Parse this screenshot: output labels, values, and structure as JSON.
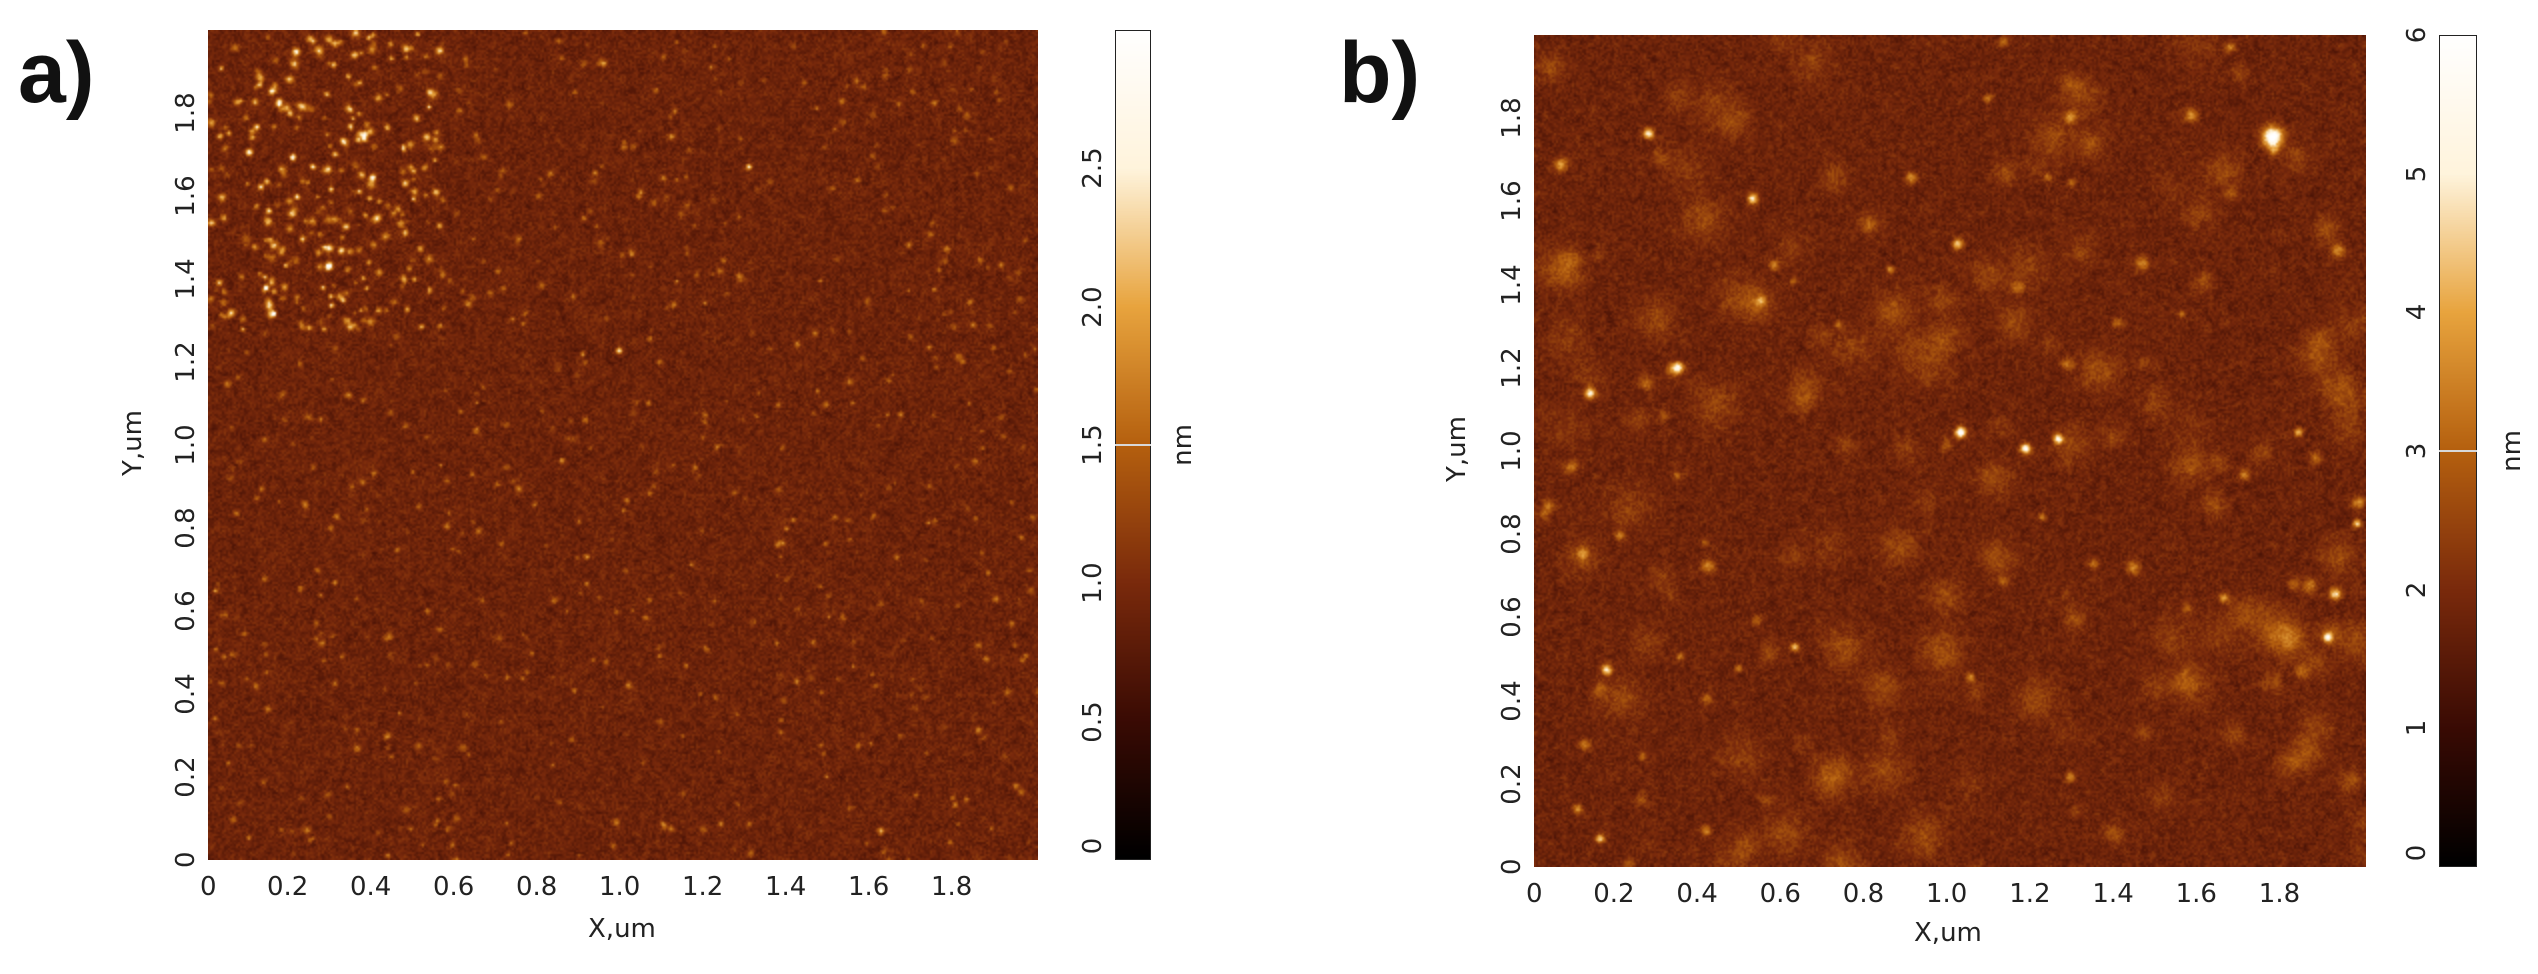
{
  "panels": [
    {
      "id": "a",
      "label": "a)",
      "x_axis": {
        "title": "X,um",
        "ticks": [
          "0",
          "0.2",
          "0.4",
          "0.6",
          "0.8",
          "1.0",
          "1.2",
          "1.4",
          "1.6",
          "1.8"
        ],
        "range": [
          0,
          2
        ]
      },
      "y_axis": {
        "title": "Y,um",
        "ticks": [
          "0",
          "0.2",
          "0.4",
          "0.6",
          "0.8",
          "1.0",
          "1.2",
          "1.4",
          "1.6",
          "1.8"
        ],
        "range": [
          0,
          2
        ]
      },
      "colorbar": {
        "unit": "nm",
        "ticks": [
          "0",
          "0.5",
          "1.0",
          "1.5",
          "2.0",
          "2.5"
        ],
        "range": [
          0,
          3
        ],
        "midpoint": 1.5,
        "colors": [
          "#000000",
          "#3a0b04",
          "#7a2a0c",
          "#b5600f",
          "#e8a43e",
          "#fff4dc",
          "#ffffff"
        ]
      }
    },
    {
      "id": "b",
      "label": "b)",
      "x_axis": {
        "title": "X,um",
        "ticks": [
          "0",
          "0.2",
          "0.4",
          "0.6",
          "0.8",
          "1.0",
          "1.2",
          "1.4",
          "1.6",
          "1.8"
        ],
        "range": [
          0,
          2
        ]
      },
      "y_axis": {
        "title": "Y,um",
        "ticks": [
          "0",
          "0.2",
          "0.4",
          "0.6",
          "0.8",
          "1.0",
          "1.2",
          "1.4",
          "1.6",
          "1.8"
        ],
        "range": [
          0,
          2
        ]
      },
      "colorbar": {
        "unit": "nm",
        "ticks": [
          "0",
          "1",
          "2",
          "3",
          "4",
          "5",
          "6"
        ],
        "range": [
          0,
          6
        ],
        "midpoint": 3,
        "colors": [
          "#000000",
          "#3a0b04",
          "#7a2a0c",
          "#b5600f",
          "#e8a43e",
          "#fff4dc",
          "#ffffff"
        ]
      }
    }
  ]
}
